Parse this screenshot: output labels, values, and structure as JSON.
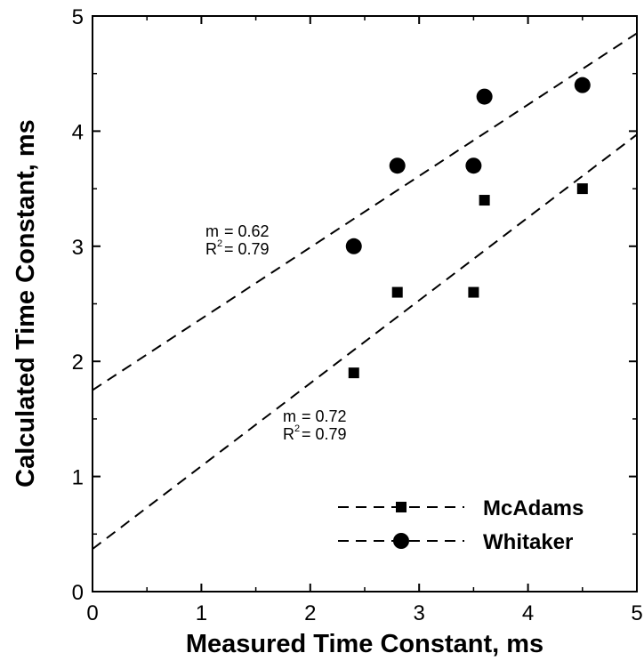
{
  "chart_data": {
    "type": "scatter",
    "xlabel": "Measured Time Constant, ms",
    "ylabel": "Calculated Time Constant, ms",
    "xlim": [
      0,
      5
    ],
    "ylim": [
      0,
      5
    ],
    "xticks": [
      "0",
      "1",
      "2",
      "3",
      "4",
      "5"
    ],
    "yticks": [
      "0",
      "1",
      "2",
      "3",
      "4",
      "5"
    ],
    "grid": false,
    "legend_position": "bottom-right",
    "series": [
      {
        "name": "McAdams",
        "marker": "square",
        "x": [
          2.4,
          2.8,
          3.5,
          3.6,
          4.5
        ],
        "y": [
          1.9,
          2.6,
          2.6,
          3.4,
          3.5
        ],
        "fit": {
          "slope": 0.72,
          "intercept": 0.37,
          "label_m": "m",
          "label_m_value": "= 0.72",
          "label_r": "R",
          "label_r_sup": "2",
          "label_r_value": "= 0.79"
        }
      },
      {
        "name": "Whitaker",
        "marker": "circle",
        "x": [
          2.4,
          2.8,
          3.5,
          3.6,
          4.5
        ],
        "y": [
          3.0,
          3.7,
          3.7,
          4.3,
          4.4
        ],
        "fit": {
          "slope": 0.62,
          "intercept": 1.75,
          "label_m": "m",
          "label_m_value": "= 0.62",
          "label_r": "R",
          "label_r_sup": "2",
          "label_r_value": "= 0.79"
        }
      }
    ],
    "colors": {
      "marks": "#000000",
      "background": "#ffffff"
    }
  }
}
